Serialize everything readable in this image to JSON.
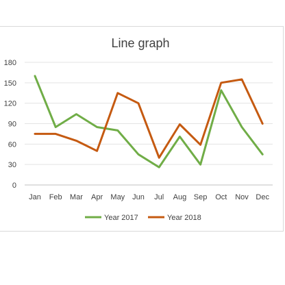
{
  "chart_data": {
    "type": "line",
    "title": "Line graph",
    "categories": [
      "Jan",
      "Feb",
      "Mar",
      "Apr",
      "May",
      "Jun",
      "Jul",
      "Aug",
      "Sep",
      "Oct",
      "Nov",
      "Dec"
    ],
    "series": [
      {
        "name": "Year 2017",
        "color": "#70ad47",
        "values": [
          160,
          85,
          104,
          85,
          80,
          45,
          26,
          71,
          30,
          139,
          85,
          45
        ]
      },
      {
        "name": "Year 2018",
        "color": "#c55a11",
        "values": [
          75,
          75,
          65,
          50,
          135,
          120,
          40,
          89,
          59,
          150,
          155,
          90
        ]
      }
    ],
    "ylim": [
      0,
      180
    ],
    "yticks": [
      "0",
      "30",
      "60",
      "90",
      "120",
      "150",
      "180"
    ],
    "grid": true,
    "legend_position": "bottom"
  }
}
